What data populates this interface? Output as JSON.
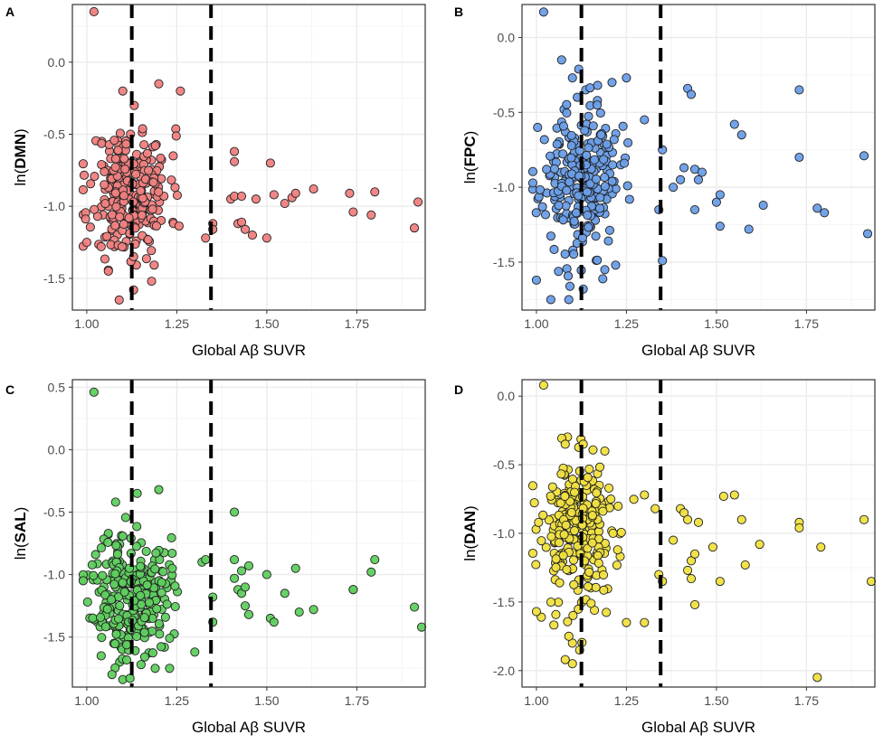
{
  "figure": {
    "x_axis_title": "Global Aβ SUVR",
    "cutoff_lines": [
      1.125,
      1.345
    ]
  },
  "colors": {
    "panel_border": "#333333",
    "grid_major": "#ebebeb",
    "grid_minor": "#f4f4f4",
    "point_stroke": "#222222",
    "cutoff_line": "#000000"
  },
  "chart_data": [
    {
      "type": "scatter",
      "panel": "A",
      "ylabel_prefix": "ln(",
      "ylabel_network": "DMN",
      "ylabel_suffix": ")",
      "xlabel": "Global Aβ SUVR",
      "color": "#f08080",
      "xlim": [
        0.96,
        1.94
      ],
      "ylim": [
        -1.72,
        0.4
      ],
      "x_ticks": [
        "1.00",
        "1.25",
        "1.50",
        "1.75"
      ],
      "y_ticks": [
        "-1.5",
        "-1.0",
        "-0.5",
        "0.0"
      ],
      "x_tick_values": [
        1.0,
        1.25,
        1.5,
        1.75
      ],
      "y_tick_values": [
        -1.5,
        -1.0,
        -0.5,
        0.0
      ],
      "outliers": [
        [
          1.02,
          0.35
        ],
        [
          1.1,
          -0.2
        ],
        [
          1.2,
          -0.15
        ],
        [
          1.26,
          -0.2
        ],
        [
          1.06,
          -1.45
        ],
        [
          1.04,
          -1.28
        ],
        [
          1.09,
          -1.65
        ],
        [
          1.13,
          -1.58
        ],
        [
          1.18,
          -1.52
        ],
        [
          1.0,
          -1.25
        ],
        [
          1.24,
          -0.65
        ]
      ],
      "points": [
        [
          1.33,
          -1.22
        ],
        [
          1.35,
          -1.12
        ],
        [
          1.35,
          -1.16
        ],
        [
          1.41,
          -0.62
        ],
        [
          1.41,
          -0.69
        ],
        [
          1.4,
          -0.95
        ],
        [
          1.41,
          -0.93
        ],
        [
          1.43,
          -0.93
        ],
        [
          1.42,
          -1.12
        ],
        [
          1.43,
          -1.11
        ],
        [
          1.44,
          -1.16
        ],
        [
          1.46,
          -1.2
        ],
        [
          1.47,
          -0.95
        ],
        [
          1.5,
          -1.22
        ],
        [
          1.51,
          -0.7
        ],
        [
          1.52,
          -0.92
        ],
        [
          1.55,
          -0.98
        ],
        [
          1.57,
          -0.94
        ],
        [
          1.58,
          -0.91
        ],
        [
          1.63,
          -0.88
        ],
        [
          1.73,
          -0.91
        ],
        [
          1.74,
          -1.04
        ],
        [
          1.79,
          -1.06
        ],
        [
          1.8,
          -0.9
        ],
        [
          1.91,
          -1.15
        ],
        [
          1.92,
          -0.97
        ]
      ],
      "cluster": {
        "seed": 11,
        "count": 260,
        "x_min": 0.99,
        "x_max": 1.3,
        "x_center": 1.12,
        "x_spread": 0.055,
        "y_center": -0.9,
        "y_spread": 0.22
      }
    },
    {
      "type": "scatter",
      "panel": "B",
      "ylabel_prefix": "ln(",
      "ylabel_network": "FPC",
      "ylabel_suffix": ")",
      "xlabel": "Global Aβ SUVR",
      "color": "#6a9ee8",
      "xlim": [
        0.96,
        1.94
      ],
      "ylim": [
        -1.82,
        0.22
      ],
      "x_ticks": [
        "1.00",
        "1.25",
        "1.50",
        "1.75"
      ],
      "y_ticks": [
        "-1.5",
        "-1.0",
        "-0.5",
        "0.0"
      ],
      "x_tick_values": [
        1.0,
        1.25,
        1.5,
        1.75
      ],
      "y_tick_values": [
        -1.5,
        -1.0,
        -0.5,
        0.0
      ],
      "outliers": [
        [
          1.02,
          0.17
        ],
        [
          1.07,
          -0.15
        ],
        [
          1.1,
          -0.27
        ],
        [
          1.17,
          -0.32
        ],
        [
          1.21,
          -0.3
        ],
        [
          1.25,
          -0.27
        ],
        [
          1.04,
          -1.75
        ],
        [
          1.09,
          -1.75
        ],
        [
          1.0,
          -1.62
        ],
        [
          1.13,
          -1.68
        ],
        [
          1.19,
          -1.55
        ],
        [
          1.22,
          -1.52
        ]
      ],
      "points": [
        [
          1.3,
          -0.55
        ],
        [
          1.35,
          -0.75
        ],
        [
          1.34,
          -1.15
        ],
        [
          1.35,
          -1.49
        ],
        [
          1.38,
          -1.0
        ],
        [
          1.4,
          -0.95
        ],
        [
          1.41,
          -0.87
        ],
        [
          1.42,
          -0.34
        ],
        [
          1.43,
          -0.38
        ],
        [
          1.44,
          -0.88
        ],
        [
          1.44,
          -1.15
        ],
        [
          1.45,
          -0.95
        ],
        [
          1.46,
          -0.9
        ],
        [
          1.5,
          -1.1
        ],
        [
          1.51,
          -1.05
        ],
        [
          1.51,
          -1.26
        ],
        [
          1.55,
          -0.58
        ],
        [
          1.57,
          -0.65
        ],
        [
          1.59,
          -1.28
        ],
        [
          1.63,
          -1.12
        ],
        [
          1.73,
          -0.35
        ],
        [
          1.73,
          -0.8
        ],
        [
          1.78,
          -1.14
        ],
        [
          1.8,
          -1.17
        ],
        [
          1.91,
          -0.79
        ],
        [
          1.92,
          -1.31
        ]
      ],
      "cluster": {
        "seed": 23,
        "count": 260,
        "x_min": 0.99,
        "x_max": 1.3,
        "x_center": 1.12,
        "x_spread": 0.055,
        "y_center": -0.95,
        "y_spread": 0.24
      }
    },
    {
      "type": "scatter",
      "panel": "C",
      "ylabel_prefix": "ln(",
      "ylabel_network": "SAL",
      "ylabel_suffix": ")",
      "xlabel": "Global Aβ SUVR",
      "color": "#5fcf5f",
      "xlim": [
        0.96,
        1.94
      ],
      "ylim": [
        -1.9,
        0.56
      ],
      "x_ticks": [
        "1.00",
        "1.25",
        "1.50",
        "1.75"
      ],
      "y_ticks": [
        "-1.5",
        "-1.0",
        "-0.5",
        "0.0",
        "0.5"
      ],
      "x_tick_values": [
        1.0,
        1.25,
        1.5,
        1.75
      ],
      "y_tick_values": [
        -1.5,
        -1.0,
        -0.5,
        0.0,
        0.5
      ],
      "outliers": [
        [
          1.02,
          0.46
        ],
        [
          1.08,
          -0.42
        ],
        [
          1.14,
          -0.35
        ],
        [
          1.2,
          -0.32
        ],
        [
          1.1,
          -1.84
        ],
        [
          1.12,
          -1.83
        ],
        [
          1.07,
          -1.8
        ],
        [
          1.04,
          -1.65
        ],
        [
          1.19,
          -1.75
        ],
        [
          1.23,
          -1.75
        ],
        [
          1.32,
          -0.9
        ]
      ],
      "points": [
        [
          1.3,
          -1.62
        ],
        [
          1.33,
          -0.88
        ],
        [
          1.35,
          -1.18
        ],
        [
          1.35,
          -1.38
        ],
        [
          1.41,
          -0.5
        ],
        [
          1.41,
          -0.88
        ],
        [
          1.41,
          -1.03
        ],
        [
          1.42,
          -1.12
        ],
        [
          1.43,
          -0.97
        ],
        [
          1.43,
          -1.15
        ],
        [
          1.44,
          -1.1
        ],
        [
          1.44,
          -1.25
        ],
        [
          1.45,
          -0.93
        ],
        [
          1.45,
          -1.32
        ],
        [
          1.5,
          -1.0
        ],
        [
          1.51,
          -1.35
        ],
        [
          1.52,
          -1.38
        ],
        [
          1.55,
          -1.15
        ],
        [
          1.58,
          -0.95
        ],
        [
          1.59,
          -1.3
        ],
        [
          1.63,
          -1.28
        ],
        [
          1.74,
          -1.12
        ],
        [
          1.74,
          -1.12
        ],
        [
          1.79,
          -0.98
        ],
        [
          1.8,
          -0.88
        ],
        [
          1.91,
          -1.26
        ],
        [
          1.93,
          -1.42
        ]
      ],
      "cluster": {
        "seed": 37,
        "count": 260,
        "x_min": 0.99,
        "x_max": 1.3,
        "x_center": 1.12,
        "x_spread": 0.055,
        "y_center": -1.15,
        "y_spread": 0.25
      }
    },
    {
      "type": "scatter",
      "panel": "D",
      "ylabel_prefix": "ln(",
      "ylabel_network": "DAN",
      "ylabel_suffix": ")",
      "xlabel": "Global Aβ SUVR",
      "color": "#f0e040",
      "xlim": [
        0.96,
        1.94
      ],
      "ylim": [
        -2.12,
        0.12
      ],
      "x_ticks": [
        "1.00",
        "1.25",
        "1.50",
        "1.75"
      ],
      "y_ticks": [
        "-2.0",
        "-1.5",
        "-1.0",
        "-0.5",
        "0.0"
      ],
      "x_tick_values": [
        1.0,
        1.25,
        1.5,
        1.75
      ],
      "y_tick_values": [
        -2.0,
        -1.5,
        -1.0,
        -0.5,
        0.0
      ],
      "outliers": [
        [
          1.02,
          0.08
        ],
        [
          1.08,
          -0.35
        ],
        [
          1.13,
          -0.35
        ],
        [
          1.19,
          -0.4
        ],
        [
          1.1,
          -1.95
        ],
        [
          1.08,
          -1.92
        ],
        [
          1.1,
          -1.8
        ],
        [
          1.12,
          -1.85
        ],
        [
          1.09,
          -1.75
        ],
        [
          1.25,
          -1.65
        ],
        [
          1.0,
          -1.57
        ]
      ],
      "points": [
        [
          1.3,
          -0.72
        ],
        [
          1.3,
          -1.65
        ],
        [
          1.33,
          -0.82
        ],
        [
          1.34,
          -1.3
        ],
        [
          1.35,
          -1.35
        ],
        [
          1.38,
          -1.05
        ],
        [
          1.4,
          -0.82
        ],
        [
          1.41,
          -0.85
        ],
        [
          1.42,
          -0.9
        ],
        [
          1.42,
          -1.27
        ],
        [
          1.43,
          -1.2
        ],
        [
          1.43,
          -1.33
        ],
        [
          1.44,
          -1.15
        ],
        [
          1.44,
          -1.52
        ],
        [
          1.45,
          -0.92
        ],
        [
          1.49,
          -1.1
        ],
        [
          1.51,
          -1.35
        ],
        [
          1.52,
          -0.73
        ],
        [
          1.55,
          -0.72
        ],
        [
          1.57,
          -0.9
        ],
        [
          1.58,
          -1.23
        ],
        [
          1.62,
          -1.08
        ],
        [
          1.73,
          -0.92
        ],
        [
          1.73,
          -0.96
        ],
        [
          1.79,
          -1.1
        ],
        [
          1.78,
          -2.05
        ],
        [
          1.91,
          -0.9
        ],
        [
          1.93,
          -1.35
        ]
      ],
      "cluster": {
        "seed": 53,
        "count": 260,
        "x_min": 0.99,
        "x_max": 1.3,
        "x_center": 1.12,
        "x_spread": 0.055,
        "y_center": -1.0,
        "y_spread": 0.28
      }
    }
  ]
}
